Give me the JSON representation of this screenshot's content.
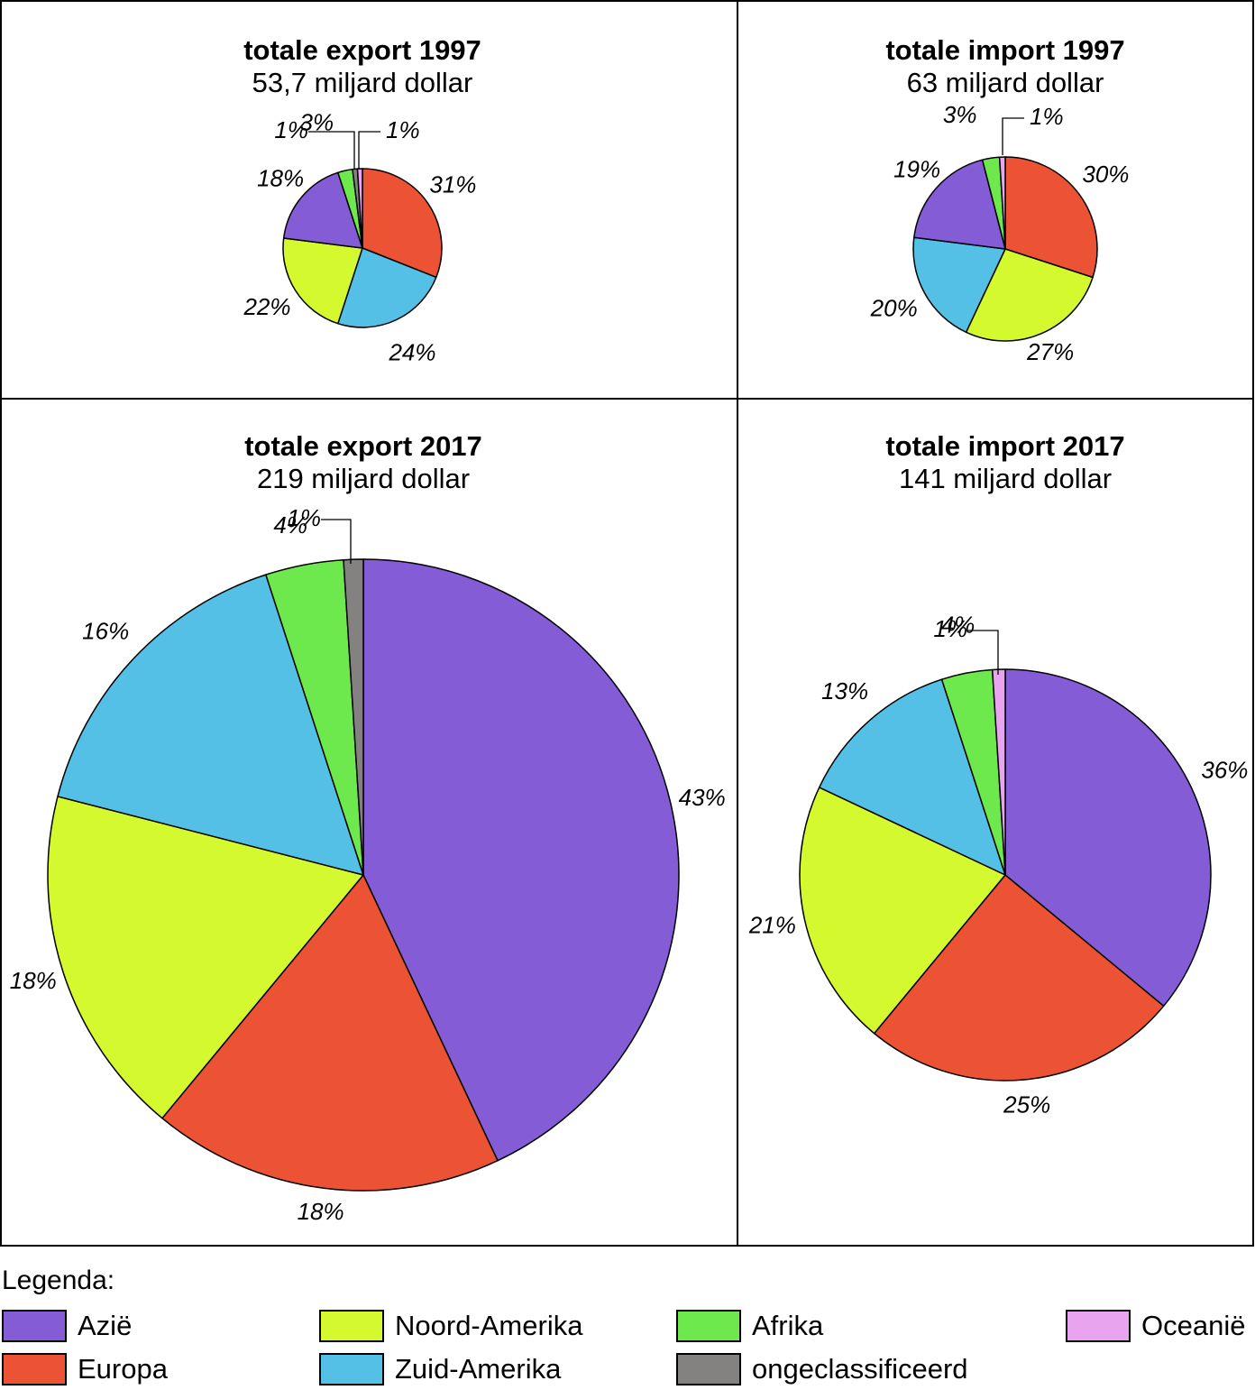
{
  "categories": {
    "azie": {
      "label": "Azië",
      "color": "#845cd6"
    },
    "europa": {
      "label": "Europa",
      "color": "#ec5234"
    },
    "noord_amerika": {
      "label": "Noord-Amerika",
      "color": "#d4f92e"
    },
    "zuid_amerika": {
      "label": "Zuid-Amerika",
      "color": "#55c0e6"
    },
    "afrika": {
      "label": "Afrika",
      "color": "#6de94d"
    },
    "ongeclassificeerd": {
      "label": "ongeclassificeerd",
      "color": "#848280"
    },
    "oceanie": {
      "label": "Oceanië",
      "color": "#e8a4ef"
    }
  },
  "legend": {
    "title": "Legenda:",
    "order": [
      "azie",
      "noord_amerika",
      "afrika",
      "oceanie",
      "europa",
      "zuid_amerika",
      "ongeclassificeerd"
    ]
  },
  "chart_data": [
    {
      "type": "pie",
      "title": "totale export 1997",
      "subtitle": "53,7 miljard dollar",
      "total": 53.7,
      "unit": "miljard dollar",
      "slices": [
        {
          "category": "europa",
          "value": 31,
          "label": "31%"
        },
        {
          "category": "zuid_amerika",
          "value": 24,
          "label": "24%"
        },
        {
          "category": "noord_amerika",
          "value": 22,
          "label": "22%"
        },
        {
          "category": "azie",
          "value": 18,
          "label": "18%"
        },
        {
          "category": "afrika",
          "value": 3,
          "label": "3%"
        },
        {
          "category": "ongeclassificeerd",
          "value": 1,
          "label": "1%"
        },
        {
          "category": "oceanie",
          "value": 1,
          "label": "1%"
        }
      ]
    },
    {
      "type": "pie",
      "title": "totale import 1997",
      "subtitle": "63 miljard dollar",
      "total": 63,
      "unit": "miljard dollar",
      "slices": [
        {
          "category": "europa",
          "value": 30,
          "label": "30%"
        },
        {
          "category": "noord_amerika",
          "value": 27,
          "label": "27%"
        },
        {
          "category": "zuid_amerika",
          "value": 20,
          "label": "20%"
        },
        {
          "category": "azie",
          "value": 19,
          "label": "19%"
        },
        {
          "category": "afrika",
          "value": 3,
          "label": "3%"
        },
        {
          "category": "oceanie",
          "value": 1,
          "label": "1%"
        }
      ]
    },
    {
      "type": "pie",
      "title": "totale export 2017",
      "subtitle": "219 miljard dollar",
      "total": 219,
      "unit": "miljard dollar",
      "slices": [
        {
          "category": "azie",
          "value": 43,
          "label": "43%"
        },
        {
          "category": "europa",
          "value": 18,
          "label": "18%"
        },
        {
          "category": "noord_amerika",
          "value": 18,
          "label": "18%"
        },
        {
          "category": "zuid_amerika",
          "value": 16,
          "label": "16%"
        },
        {
          "category": "afrika",
          "value": 4,
          "label": "4%"
        },
        {
          "category": "ongeclassificeerd",
          "value": 1,
          "label": "1%"
        }
      ]
    },
    {
      "type": "pie",
      "title": "totale import 2017",
      "subtitle": "141 miljard dollar",
      "total": 141,
      "unit": "miljard dollar",
      "slices": [
        {
          "category": "azie",
          "value": 36,
          "label": "36%"
        },
        {
          "category": "europa",
          "value": 25,
          "label": "25%"
        },
        {
          "category": "noord_amerika",
          "value": 21,
          "label": "21%"
        },
        {
          "category": "zuid_amerika",
          "value": 13,
          "label": "13%"
        },
        {
          "category": "afrika",
          "value": 4,
          "label": "4%"
        },
        {
          "category": "oceanie",
          "value": 1,
          "label": "1%"
        }
      ]
    }
  ]
}
